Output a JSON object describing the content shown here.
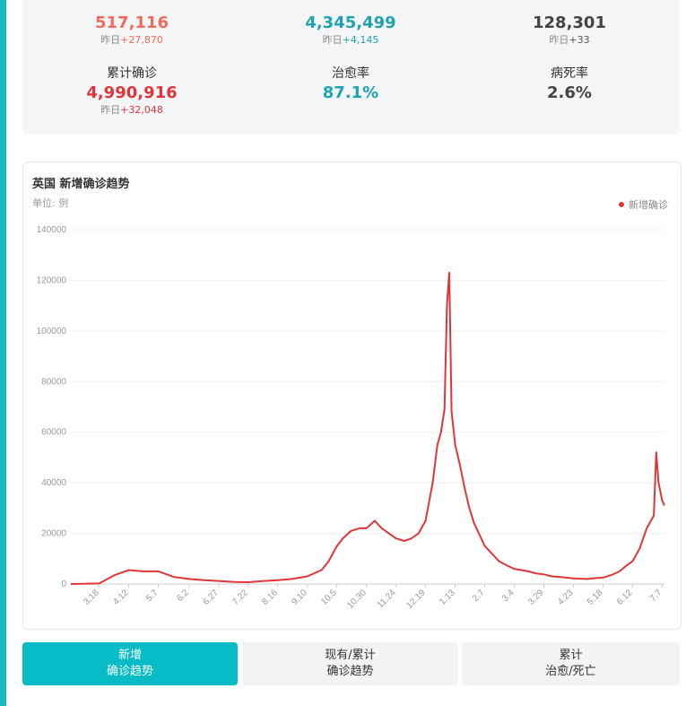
{
  "stats": {
    "top_row": [
      {
        "value": "517,116",
        "delta_prefix": "昨日",
        "delta": "+27,870",
        "color": "#f06b5c"
      },
      {
        "value": "4,345,499",
        "delta_prefix": "昨日",
        "delta": "+4,145",
        "color": "#1fa3ae"
      },
      {
        "value": "128,301",
        "delta_prefix": "昨日",
        "delta": "+33",
        "color": "#444444"
      }
    ],
    "bottom_row": [
      {
        "label": "累计确诊",
        "value": "4,990,916",
        "delta_prefix": "昨日",
        "delta": "+32,048",
        "color": "#e0363b"
      },
      {
        "label": "治愈率",
        "value": "87.1%",
        "color": "#1fa3ae"
      },
      {
        "label": "病死率",
        "value": "2.6%",
        "color": "#444444"
      }
    ]
  },
  "chart": {
    "title": "英国 新增确诊趋势",
    "unit": "单位: 例",
    "legend": "新增确诊",
    "line_color": "#e0363b"
  },
  "chart_data": {
    "type": "line",
    "title": "英国 新增确诊趋势",
    "ylabel": "单位: 例",
    "ylim": [
      0,
      140000
    ],
    "yticks": [
      0,
      20000,
      40000,
      60000,
      80000,
      100000,
      120000,
      140000
    ],
    "xticks": [
      "3.18",
      "4.12",
      "5.7",
      "6.2",
      "6.27",
      "7.22",
      "8.16",
      "9.10",
      "10.5",
      "10.30",
      "11.24",
      "12.19",
      "1.13",
      "2.7",
      "3.4",
      "3.29",
      "4.23",
      "5.18",
      "6.12",
      "7.7"
    ],
    "grid": true,
    "legend_position": "top-right",
    "series": [
      {
        "name": "新增确诊",
        "x": [
          "2.22",
          "3.18",
          "3.31",
          "4.12",
          "4.24",
          "5.7",
          "5.20",
          "6.2",
          "6.15",
          "6.27",
          "7.10",
          "7.22",
          "8.4",
          "8.16",
          "8.28",
          "9.10",
          "9.22",
          "9.28",
          "10.5",
          "10.10",
          "10.17",
          "10.24",
          "10.30",
          "11.6",
          "11.12",
          "11.18",
          "11.24",
          "12.1",
          "12.7",
          "12.13",
          "12.19",
          "12.25",
          "12.29",
          "1.1",
          "1.4",
          "1.6",
          "1.8",
          "1.10",
          "1.13",
          "1.17",
          "1.21",
          "1.25",
          "1.29",
          "2.2",
          "2.7",
          "2.13",
          "2.19",
          "2.25",
          "3.4",
          "3.10",
          "3.16",
          "3.22",
          "3.29",
          "4.5",
          "4.11",
          "4.17",
          "4.23",
          "4.29",
          "5.5",
          "5.11",
          "5.18",
          "5.25",
          "6.1",
          "6.6",
          "6.12",
          "6.18",
          "6.24",
          "6.30",
          "7.2",
          "7.4",
          "7.7",
          "7.9"
        ],
        "values": [
          0,
          200,
          3500,
          5500,
          5000,
          5000,
          2800,
          2000,
          1500,
          1200,
          800,
          700,
          1200,
          1500,
          2000,
          3000,
          5500,
          9000,
          15000,
          18000,
          21000,
          22000,
          22000,
          25000,
          22000,
          20000,
          18000,
          17000,
          18000,
          20000,
          25000,
          40000,
          55000,
          60000,
          69000,
          110000,
          123000,
          68000,
          55000,
          47000,
          38000,
          30000,
          24000,
          20000,
          15000,
          12000,
          9000,
          7500,
          6000,
          5500,
          5000,
          4200,
          3800,
          3000,
          2800,
          2500,
          2200,
          2100,
          2000,
          2300,
          2500,
          3500,
          5000,
          7000,
          9000,
          14000,
          22000,
          27000,
          52000,
          40000,
          33000,
          31000
        ]
      }
    ]
  },
  "tabs": [
    {
      "line1": "新增",
      "line2": "确诊趋势",
      "active": true
    },
    {
      "line1": "现有/累计",
      "line2": "确诊趋势",
      "active": false
    },
    {
      "line1": "累计",
      "line2": "治愈/死亡",
      "active": false
    }
  ]
}
